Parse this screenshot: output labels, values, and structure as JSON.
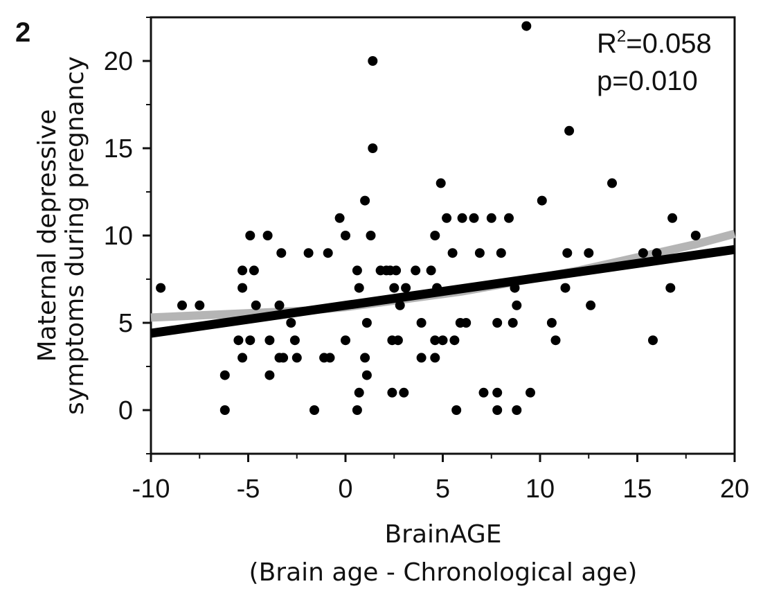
{
  "panel_label": "2",
  "stats": {
    "r2_base": "R",
    "r2_sup": "2",
    "r2_value": "=0.058",
    "p_text": "p=0.010"
  },
  "colors": {
    "points": "#000000",
    "fit_line": "#000000",
    "smooth_line": "#b5b5b5",
    "axis": "#111111"
  },
  "chart_data": {
    "type": "scatter",
    "title": "",
    "xlabel_line1": "BrainAGE",
    "xlabel_line2": "(Brain age - Chronological age)",
    "ylabel_line1": "Maternal depressive",
    "ylabel_line2": "symptoms during pregnancy",
    "xlim": [
      -10,
      20
    ],
    "ylim": [
      -2.5,
      22.5
    ],
    "xticks": [
      -10,
      -5,
      0,
      5,
      10,
      15,
      20
    ],
    "xtick_labels": [
      "-10",
      "-5",
      "0",
      "5",
      "10",
      "15",
      "20"
    ],
    "yticks": [
      0,
      5,
      10,
      15,
      20
    ],
    "ytick_labels": [
      "0",
      "5",
      "10",
      "15",
      "20"
    ],
    "grid": false,
    "linear_fit": {
      "x": [
        -10,
        20
      ],
      "y": [
        4.4,
        9.2
      ]
    },
    "smooth_fit": {
      "x": [
        -10,
        -6,
        -2,
        0,
        2,
        4,
        6,
        8,
        10,
        12,
        14,
        16,
        18,
        20
      ],
      "y": [
        5.3,
        5.5,
        5.7,
        5.9,
        6.2,
        6.5,
        6.8,
        7.2,
        7.6,
        8.0,
        8.5,
        9.0,
        9.5,
        10.1
      ]
    },
    "points": [
      {
        "x": -9.5,
        "y": 7
      },
      {
        "x": -8.4,
        "y": 6
      },
      {
        "x": -7.5,
        "y": 6
      },
      {
        "x": -6.2,
        "y": 2
      },
      {
        "x": -6.2,
        "y": 0
      },
      {
        "x": -5.5,
        "y": 4
      },
      {
        "x": -5.3,
        "y": 8
      },
      {
        "x": -5.3,
        "y": 7
      },
      {
        "x": -5.3,
        "y": 3
      },
      {
        "x": -4.9,
        "y": 10
      },
      {
        "x": -4.9,
        "y": 4
      },
      {
        "x": -4.7,
        "y": 8
      },
      {
        "x": -4.6,
        "y": 6
      },
      {
        "x": -4.0,
        "y": 10
      },
      {
        "x": -3.9,
        "y": 4
      },
      {
        "x": -3.9,
        "y": 2
      },
      {
        "x": -3.4,
        "y": 6
      },
      {
        "x": -3.4,
        "y": 3
      },
      {
        "x": -3.3,
        "y": 9
      },
      {
        "x": -3.2,
        "y": 3
      },
      {
        "x": -2.8,
        "y": 5
      },
      {
        "x": -2.6,
        "y": 4
      },
      {
        "x": -2.5,
        "y": 3
      },
      {
        "x": -1.9,
        "y": 9
      },
      {
        "x": -1.6,
        "y": 0
      },
      {
        "x": -1.1,
        "y": 3
      },
      {
        "x": -0.9,
        "y": 9
      },
      {
        "x": -0.8,
        "y": 3
      },
      {
        "x": -0.3,
        "y": 11
      },
      {
        "x": 0.0,
        "y": 10
      },
      {
        "x": 0.0,
        "y": 4
      },
      {
        "x": 0.6,
        "y": 8
      },
      {
        "x": 0.6,
        "y": 0
      },
      {
        "x": 0.7,
        "y": 7
      },
      {
        "x": 0.7,
        "y": 1
      },
      {
        "x": 1.0,
        "y": 12
      },
      {
        "x": 1.0,
        "y": 3
      },
      {
        "x": 1.1,
        "y": 5
      },
      {
        "x": 1.1,
        "y": 2
      },
      {
        "x": 1.3,
        "y": 10
      },
      {
        "x": 1.4,
        "y": 20
      },
      {
        "x": 1.4,
        "y": 15
      },
      {
        "x": 1.8,
        "y": 8
      },
      {
        "x": 2.1,
        "y": 8
      },
      {
        "x": 2.3,
        "y": 8
      },
      {
        "x": 2.4,
        "y": 4
      },
      {
        "x": 2.4,
        "y": 1
      },
      {
        "x": 2.5,
        "y": 7
      },
      {
        "x": 2.6,
        "y": 8
      },
      {
        "x": 2.7,
        "y": 4
      },
      {
        "x": 2.8,
        "y": 6
      },
      {
        "x": 3.1,
        "y": 7
      },
      {
        "x": 3.0,
        "y": 1
      },
      {
        "x": 3.6,
        "y": 8
      },
      {
        "x": 3.9,
        "y": 5
      },
      {
        "x": 3.9,
        "y": 3
      },
      {
        "x": 4.4,
        "y": 8
      },
      {
        "x": 4.6,
        "y": 10
      },
      {
        "x": 4.6,
        "y": 4
      },
      {
        "x": 4.6,
        "y": 3
      },
      {
        "x": 4.7,
        "y": 7
      },
      {
        "x": 4.9,
        "y": 13
      },
      {
        "x": 5.0,
        "y": 4
      },
      {
        "x": 5.2,
        "y": 11
      },
      {
        "x": 5.5,
        "y": 9
      },
      {
        "x": 5.6,
        "y": 4
      },
      {
        "x": 5.7,
        "y": 0
      },
      {
        "x": 5.9,
        "y": 5
      },
      {
        "x": 6.0,
        "y": 11
      },
      {
        "x": 6.2,
        "y": 5
      },
      {
        "x": 6.6,
        "y": 11
      },
      {
        "x": 6.9,
        "y": 9
      },
      {
        "x": 7.1,
        "y": 1
      },
      {
        "x": 7.5,
        "y": 11
      },
      {
        "x": 7.8,
        "y": 5
      },
      {
        "x": 7.8,
        "y": 1
      },
      {
        "x": 7.8,
        "y": 0
      },
      {
        "x": 8.0,
        "y": 9
      },
      {
        "x": 8.4,
        "y": 11
      },
      {
        "x": 8.6,
        "y": 5
      },
      {
        "x": 8.7,
        "y": 7
      },
      {
        "x": 8.8,
        "y": 6
      },
      {
        "x": 8.8,
        "y": 0
      },
      {
        "x": 9.3,
        "y": 22
      },
      {
        "x": 9.5,
        "y": 1
      },
      {
        "x": 10.1,
        "y": 12
      },
      {
        "x": 10.6,
        "y": 5
      },
      {
        "x": 10.8,
        "y": 4
      },
      {
        "x": 11.3,
        "y": 7
      },
      {
        "x": 11.4,
        "y": 9
      },
      {
        "x": 11.5,
        "y": 16
      },
      {
        "x": 12.5,
        "y": 9
      },
      {
        "x": 12.6,
        "y": 6
      },
      {
        "x": 13.7,
        "y": 13
      },
      {
        "x": 15.3,
        "y": 9
      },
      {
        "x": 15.8,
        "y": 4
      },
      {
        "x": 16.0,
        "y": 9
      },
      {
        "x": 16.7,
        "y": 7
      },
      {
        "x": 16.8,
        "y": 11
      },
      {
        "x": 18.0,
        "y": 10
      }
    ]
  }
}
